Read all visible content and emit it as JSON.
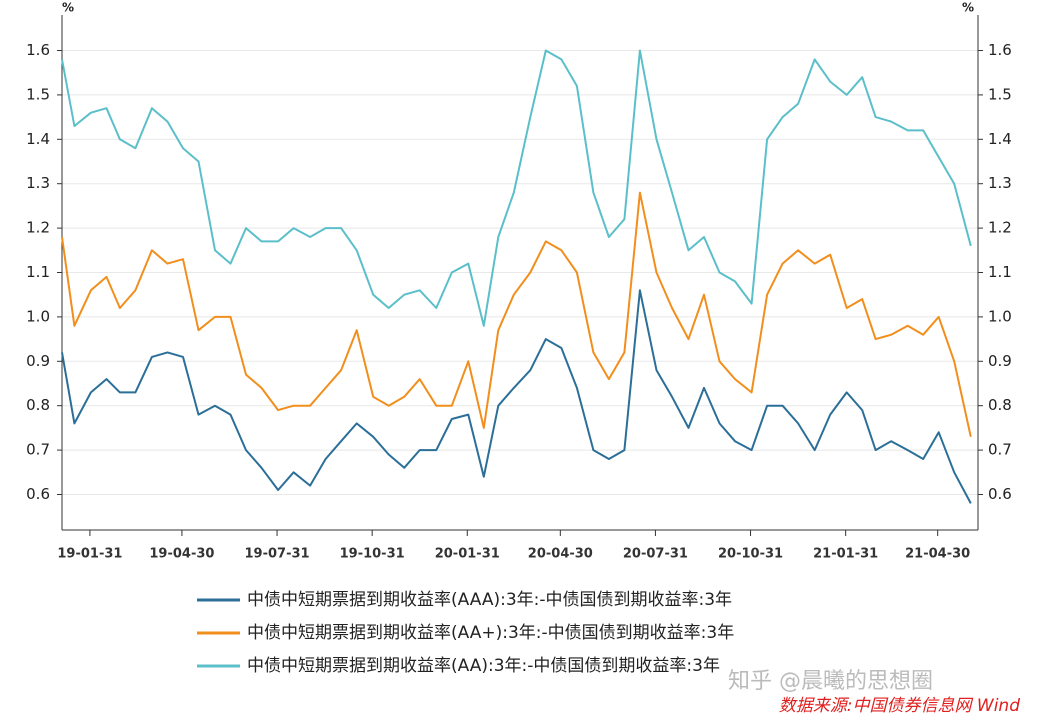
{
  "chart_data": {
    "type": "line",
    "y_unit": "%",
    "y2_unit": "%",
    "x": [
      "19-01-04",
      "19-01-16",
      "19-02-01",
      "19-02-16",
      "19-03-01",
      "19-03-16",
      "19-04-01",
      "19-04-16",
      "19-05-01",
      "19-05-16",
      "19-06-01",
      "19-06-16",
      "19-07-01",
      "19-07-16",
      "19-08-01",
      "19-08-16",
      "19-09-01",
      "19-09-16",
      "19-10-01",
      "19-10-16",
      "19-11-01",
      "19-11-16",
      "19-12-01",
      "19-12-16",
      "20-01-01",
      "20-01-16",
      "20-02-01",
      "20-02-16",
      "20-03-01",
      "20-03-16",
      "20-04-01",
      "20-04-16",
      "20-05-01",
      "20-05-16",
      "20-06-01",
      "20-06-16",
      "20-07-01",
      "20-07-16",
      "20-08-01",
      "20-08-16",
      "20-09-01",
      "20-09-16",
      "20-10-01",
      "20-10-16",
      "20-11-01",
      "20-11-16",
      "20-12-01",
      "20-12-16",
      "21-01-01",
      "21-01-16",
      "21-02-01",
      "21-02-16",
      "21-03-01",
      "21-03-16",
      "21-04-01",
      "21-04-16",
      "21-05-01",
      "21-05-16",
      "21-06-01"
    ],
    "xlim": [
      "19-01-04",
      "21-06-08"
    ],
    "xticks": [
      "19-01-31",
      "19-04-30",
      "19-07-31",
      "19-10-31",
      "20-01-31",
      "20-04-30",
      "20-07-31",
      "20-10-31",
      "21-01-31",
      "21-04-30"
    ],
    "ylim": [
      0.52,
      1.68
    ],
    "yticks": [
      0.6,
      0.7,
      0.8,
      0.9,
      {
        "value": 1,
        "label": "1.0"
      },
      1.1,
      1.2,
      1.3,
      1.4,
      1.5,
      1.6
    ],
    "y2lim": [
      0.52,
      1.68
    ],
    "y2ticks": [
      0.6,
      0.7,
      0.8,
      0.9,
      {
        "value": 1,
        "label": "1.0"
      },
      1.1,
      1.2,
      1.3,
      1.4,
      1.5,
      1.6
    ],
    "grid": true,
    "series": [
      {
        "name": "中债中短期票据到期收益率(AAA):3年:-中债国债到期收益率:3年",
        "color": "#2b6f98",
        "values": [
          0.92,
          0.76,
          0.83,
          0.86,
          0.83,
          0.83,
          0.91,
          0.92,
          0.91,
          0.78,
          0.8,
          0.78,
          0.7,
          0.66,
          0.61,
          0.65,
          0.62,
          0.68,
          0.72,
          0.76,
          0.73,
          0.69,
          0.66,
          0.7,
          0.7,
          0.77,
          0.78,
          0.64,
          0.8,
          0.84,
          0.88,
          0.95,
          0.93,
          0.84,
          0.7,
          0.68,
          0.7,
          1.06,
          0.88,
          0.82,
          0.75,
          0.84,
          0.76,
          0.72,
          0.7,
          0.8,
          0.8,
          0.76,
          0.7,
          0.78,
          0.83,
          0.79,
          0.7,
          0.72,
          0.7,
          0.68,
          0.74,
          0.65,
          0.58
        ]
      },
      {
        "name": "中债中短期票据到期收益率(AA+):3年:-中债国债到期收益率:3年",
        "color": "#f28e1c",
        "values": [
          1.18,
          0.98,
          1.06,
          1.09,
          1.02,
          1.06,
          1.15,
          1.12,
          1.13,
          0.97,
          1.0,
          1.0,
          0.87,
          0.84,
          0.79,
          0.8,
          0.8,
          0.84,
          0.88,
          0.97,
          0.82,
          0.8,
          0.82,
          0.86,
          0.8,
          0.8,
          0.9,
          0.75,
          0.97,
          1.05,
          1.1,
          1.17,
          1.15,
          1.1,
          0.92,
          0.86,
          0.92,
          1.28,
          1.1,
          1.02,
          0.95,
          1.05,
          0.9,
          0.86,
          0.83,
          1.05,
          1.12,
          1.15,
          1.12,
          1.14,
          1.02,
          1.04,
          0.95,
          0.96,
          0.98,
          0.96,
          1.0,
          0.9,
          0.73
        ]
      },
      {
        "name": "中债中短期票据到期收益率(AA):3年:-中债国债到期收益率:3年",
        "color": "#5bbfca",
        "values": [
          1.58,
          1.43,
          1.46,
          1.47,
          1.4,
          1.38,
          1.47,
          1.44,
          1.38,
          1.35,
          1.15,
          1.12,
          1.2,
          1.17,
          1.17,
          1.2,
          1.18,
          1.2,
          1.2,
          1.15,
          1.05,
          1.02,
          1.05,
          1.06,
          1.02,
          1.1,
          1.12,
          0.98,
          1.18,
          1.28,
          1.45,
          1.6,
          1.58,
          1.52,
          1.28,
          1.18,
          1.22,
          1.6,
          1.4,
          1.28,
          1.15,
          1.18,
          1.1,
          1.08,
          1.03,
          1.4,
          1.45,
          1.48,
          1.58,
          1.53,
          1.5,
          1.54,
          1.45,
          1.44,
          1.42,
          1.42,
          1.36,
          1.3,
          1.16
        ]
      }
    ],
    "watermark": "知乎 @晨曦的思想圈",
    "source": "数据来源:中国债券信息网 Wind"
  }
}
